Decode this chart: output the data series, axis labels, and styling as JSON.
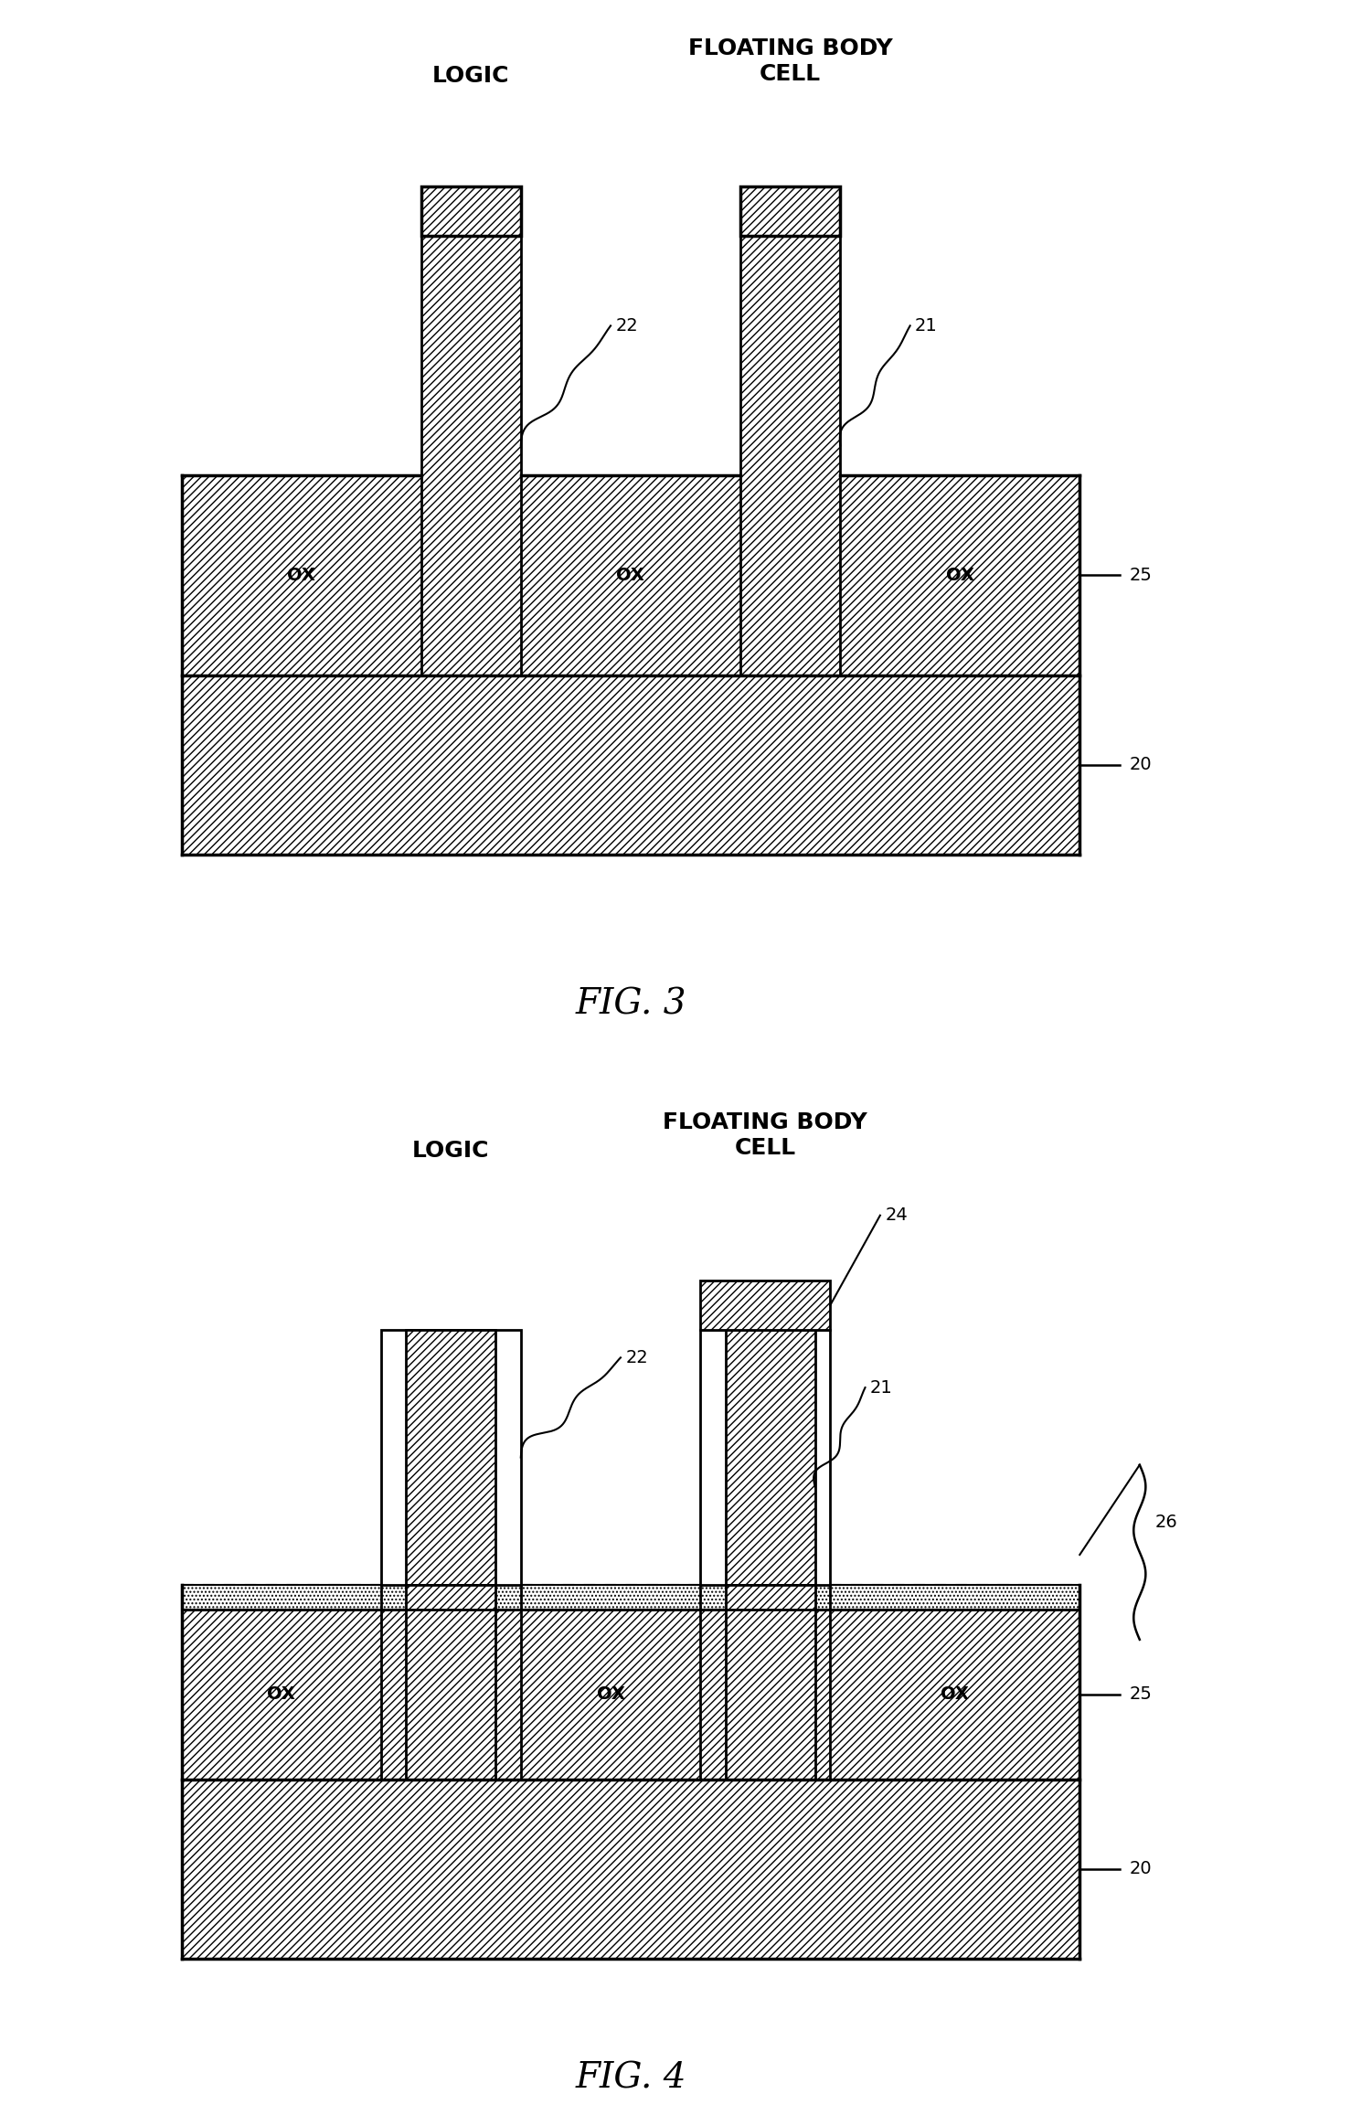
{
  "fig3": {
    "label_logic": "LOGIC",
    "label_fbc": "FLOATING BODY\nCELL",
    "fig_label": "FIG. 3",
    "ref22": "22",
    "ref21": "21",
    "ref25": "25",
    "ref20": "20"
  },
  "fig4": {
    "label_logic": "LOGIC",
    "label_fbc": "FLOATING BODY\nCELL",
    "fig_label": "FIG. 4",
    "ref22": "22",
    "ref21": "21",
    "ref24": "24",
    "ref25": "25",
    "ref20": "20",
    "ref26": "26"
  },
  "bg_color": "#ffffff"
}
